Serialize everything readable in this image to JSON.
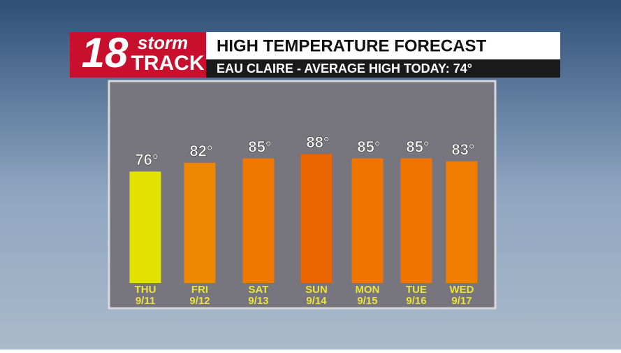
{
  "logo": {
    "number": "18",
    "top": "storm",
    "bottom": "TRACK"
  },
  "chart_data": {
    "type": "bar",
    "title": "HIGH TEMPERATURE FORECAST",
    "subtitle": "EAU CLAIRE - AVERAGE HIGH TODAY: 74°",
    "categories": [
      "THU",
      "FRI",
      "SAT",
      "SUN",
      "MON",
      "TUE",
      "WED"
    ],
    "dates": [
      "9/11",
      "9/12",
      "9/13",
      "9/14",
      "9/15",
      "9/16",
      "9/17"
    ],
    "values": [
      76,
      82,
      85,
      88,
      85,
      85,
      83
    ],
    "value_labels": [
      "76°",
      "82°",
      "85°",
      "88°",
      "85°",
      "85°",
      "83°"
    ],
    "colors": [
      "#e2e200",
      "#ee8800",
      "#f07800",
      "#ea6400",
      "#f07500",
      "#f07500",
      "#f07c00"
    ]
  }
}
